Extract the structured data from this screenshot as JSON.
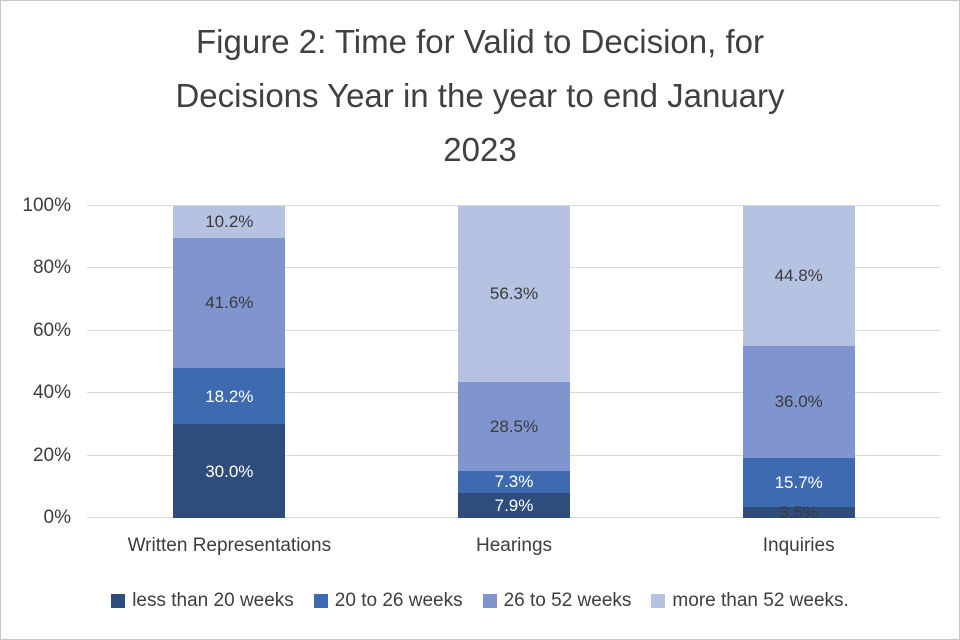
{
  "title": {
    "line1": "Figure 2: Time for Valid to Decision, for",
    "line2": "Decisions Year in the year to end January",
    "line3": "2023"
  },
  "colors": {
    "title_text": "#404040",
    "axis_text": "#3d3d3d",
    "gridline": "#d9d9d9",
    "border": "#c6c6c6",
    "dark_label": "#3a3a3a",
    "light_label": "#ffffff"
  },
  "chart_data": {
    "type": "bar",
    "subtype": "stacked-100",
    "title": "Figure 2: Time for Valid to Decision, for Decisions Year in the year to end January 2023",
    "categories": [
      "Written Representations",
      "Hearings",
      "Inquiries"
    ],
    "series": [
      {
        "name": "less than 20 weeks",
        "color": "#2e4d7c",
        "values": [
          30.0,
          7.9,
          3.5
        ],
        "label_colors": [
          "#ffffff",
          "#ffffff",
          "#3a3a3a"
        ]
      },
      {
        "name": "20 to 26 weeks",
        "color": "#3e6ab0",
        "values": [
          18.2,
          7.3,
          15.7
        ],
        "label_colors": [
          "#ffffff",
          "#ffffff",
          "#ffffff"
        ]
      },
      {
        "name": "26 to 52 weeks",
        "color": "#8094ce",
        "values": [
          41.6,
          28.5,
          36.0
        ],
        "label_colors": [
          "#3a3a3a",
          "#3a3a3a",
          "#3a3a3a"
        ]
      },
      {
        "name": "more than 52 weeks.",
        "color": "#b6c2e1",
        "values": [
          10.2,
          56.3,
          44.8
        ],
        "label_colors": [
          "#3a3a3a",
          "#3a3a3a",
          "#3a3a3a"
        ]
      }
    ],
    "yticks": [
      {
        "value": 0,
        "label": "0%"
      },
      {
        "value": 20,
        "label": "20%"
      },
      {
        "value": 40,
        "label": "40%"
      },
      {
        "value": 60,
        "label": "60%"
      },
      {
        "value": 80,
        "label": "80%"
      },
      {
        "value": 100,
        "label": "100%"
      }
    ],
    "ylim": [
      0,
      100
    ],
    "grid": true,
    "legend_position": "bottom",
    "value_suffix": "%"
  }
}
